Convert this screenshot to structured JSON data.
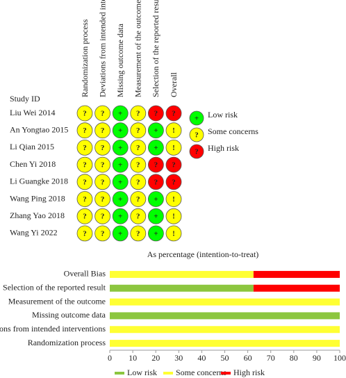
{
  "traffic_light": {
    "header": "Study ID",
    "domains": [
      "Randomization process",
      "Deviations from intended interventions",
      "Missing outcome data",
      "Measurement of the outcome",
      "Selection of the reported result",
      "Overall"
    ],
    "rows": [
      {
        "study": "Liu Wei 2014",
        "cells": [
          {
            "text": "?",
            "color": "#ffff00"
          },
          {
            "text": "?",
            "color": "#ffff00"
          },
          {
            "text": "+",
            "color": "#00ff00"
          },
          {
            "text": "?",
            "color": "#ffff00"
          },
          {
            "text": "?",
            "color": "#ff0000"
          },
          {
            "text": "?",
            "color": "#ff0000"
          }
        ]
      },
      {
        "study": "An Yongtao 2015",
        "cells": [
          {
            "text": "?",
            "color": "#ffff00"
          },
          {
            "text": "?",
            "color": "#ffff00"
          },
          {
            "text": "+",
            "color": "#00ff00"
          },
          {
            "text": "?",
            "color": "#ffff00"
          },
          {
            "text": "+",
            "color": "#00ff00"
          },
          {
            "text": "!",
            "color": "#ffff00"
          }
        ]
      },
      {
        "study": "Li Qian 2015",
        "cells": [
          {
            "text": "?",
            "color": "#ffff00"
          },
          {
            "text": "?",
            "color": "#ffff00"
          },
          {
            "text": "+",
            "color": "#00ff00"
          },
          {
            "text": "?",
            "color": "#ffff00"
          },
          {
            "text": "+",
            "color": "#00ff00"
          },
          {
            "text": "!",
            "color": "#ffff00"
          }
        ]
      },
      {
        "study": "Chen Yi 2018",
        "cells": [
          {
            "text": "?",
            "color": "#ffff00"
          },
          {
            "text": "?",
            "color": "#ffff00"
          },
          {
            "text": "+",
            "color": "#00ff00"
          },
          {
            "text": "?",
            "color": "#ffff00"
          },
          {
            "text": "?",
            "color": "#ff0000"
          },
          {
            "text": "?",
            "color": "#ff0000"
          }
        ]
      },
      {
        "study": "Li Guangke 2018",
        "cells": [
          {
            "text": "?",
            "color": "#ffff00"
          },
          {
            "text": "?",
            "color": "#ffff00"
          },
          {
            "text": "+",
            "color": "#00ff00"
          },
          {
            "text": "?",
            "color": "#ffff00"
          },
          {
            "text": "?",
            "color": "#ff0000"
          },
          {
            "text": "?",
            "color": "#ff0000"
          }
        ]
      },
      {
        "study": "Wang Ping 2018",
        "cells": [
          {
            "text": "?",
            "color": "#ffff00"
          },
          {
            "text": "?",
            "color": "#ffff00"
          },
          {
            "text": "+",
            "color": "#00ff00"
          },
          {
            "text": "?",
            "color": "#ffff00"
          },
          {
            "text": "+",
            "color": "#00ff00"
          },
          {
            "text": "!",
            "color": "#ffff00"
          }
        ]
      },
      {
        "study": "Zhang Yao 2018",
        "cells": [
          {
            "text": "?",
            "color": "#ffff00"
          },
          {
            "text": "?",
            "color": "#ffff00"
          },
          {
            "text": "+",
            "color": "#00ff00"
          },
          {
            "text": "?",
            "color": "#ffff00"
          },
          {
            "text": "+",
            "color": "#00ff00"
          },
          {
            "text": "!",
            "color": "#ffff00"
          }
        ]
      },
      {
        "study": "Wang Yi 2022",
        "cells": [
          {
            "text": "?",
            "color": "#ffff00"
          },
          {
            "text": "?",
            "color": "#ffff00"
          },
          {
            "text": "+",
            "color": "#00ff00"
          },
          {
            "text": "?",
            "color": "#ffff00"
          },
          {
            "text": "+",
            "color": "#00ff00"
          },
          {
            "text": "!",
            "color": "#ffff00"
          }
        ]
      }
    ],
    "legend": [
      {
        "symbol": "+",
        "label": "Low risk",
        "color": "#00ff00"
      },
      {
        "symbol": "?",
        "label": "Some concerns",
        "color": "#ffff00"
      },
      {
        "symbol": "?",
        "label": "High risk",
        "color": "#ff0000"
      }
    ]
  },
  "chart_data": {
    "type": "stacked_barh",
    "title": "As percentage (intention-to-treat)",
    "categories": [
      "Overall Bias",
      "Selection of the reported result",
      "Measurement of the outcome",
      "Missing outcome data",
      "Deviations from intended interventions",
      "Randomization process"
    ],
    "series": [
      {
        "name": "Low risk",
        "color": "#8cc63f",
        "values": [
          0,
          62.5,
          0,
          100,
          0,
          0
        ]
      },
      {
        "name": "Some concerns",
        "color": "#ffff33",
        "values": [
          62.5,
          0,
          100,
          0,
          100,
          100
        ]
      },
      {
        "name": "High risk",
        "color": "#ff0000",
        "values": [
          37.5,
          37.5,
          0,
          0,
          0,
          0
        ]
      }
    ],
    "xlim": [
      0,
      100
    ],
    "xticks": [
      0,
      10,
      20,
      30,
      40,
      50,
      60,
      70,
      80,
      90,
      100
    ],
    "legend": "bottom"
  }
}
